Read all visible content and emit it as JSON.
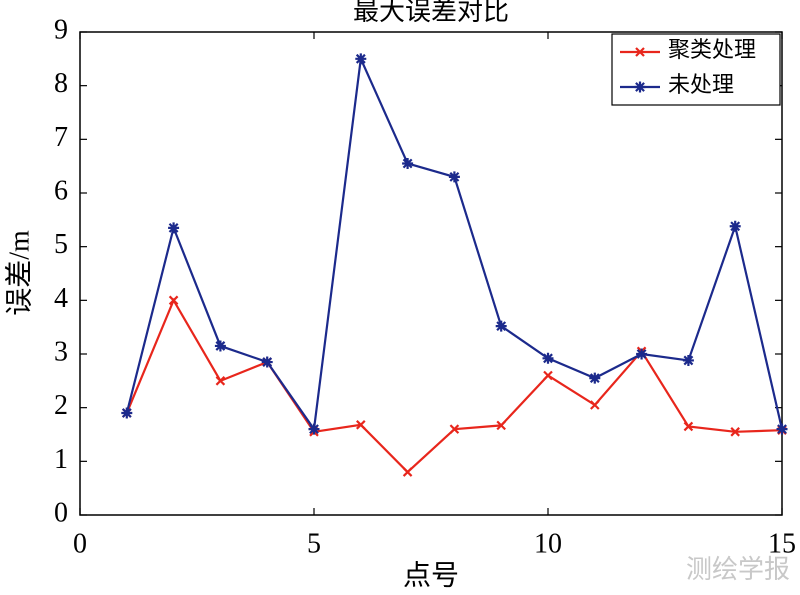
{
  "chart_data": {
    "type": "line",
    "title": "最大误差对比",
    "x_label": "点号",
    "y_label": "误差/m",
    "x": [
      1,
      2,
      3,
      4,
      5,
      6,
      7,
      8,
      9,
      10,
      11,
      12,
      13,
      14,
      15
    ],
    "series": [
      {
        "name": "聚类处理",
        "color": "#e8261c",
        "marker": "x",
        "values": [
          1.9,
          4.0,
          2.5,
          2.85,
          1.55,
          1.68,
          0.8,
          1.6,
          1.67,
          2.6,
          2.05,
          3.05,
          1.65,
          1.55,
          1.58
        ]
      },
      {
        "name": "未处理",
        "color": "#1c2a8c",
        "marker": "*",
        "values": [
          1.9,
          5.35,
          3.15,
          2.85,
          1.6,
          8.5,
          6.55,
          6.3,
          3.52,
          2.92,
          2.55,
          3.0,
          2.88,
          5.38,
          1.6
        ]
      }
    ],
    "xlim": [
      0,
      15
    ],
    "xticks": [
      0,
      5,
      10,
      15
    ],
    "ylim": [
      0,
      9
    ],
    "yticks": [
      0,
      1,
      2,
      3,
      4,
      5,
      6,
      7,
      8,
      9
    ],
    "legend": "upper-right",
    "grid": false,
    "watermark": "测绘学报"
  }
}
